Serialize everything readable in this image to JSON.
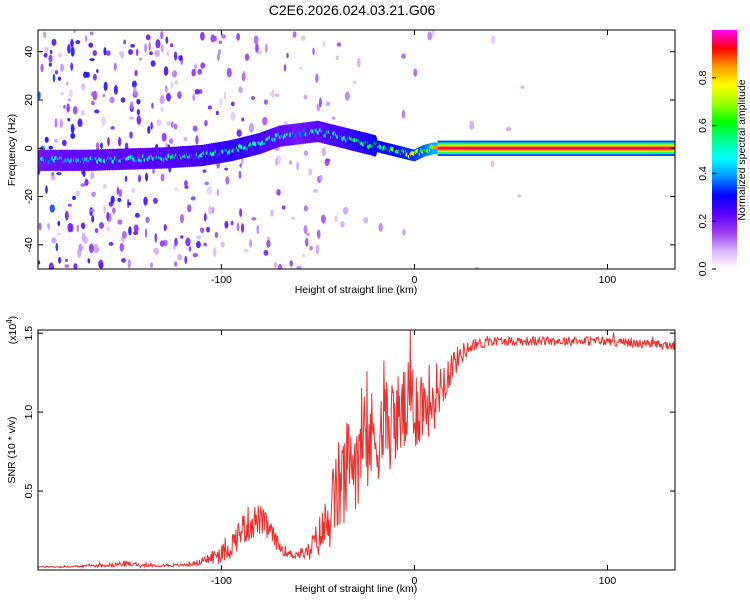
{
  "title": "C2E6.2026.024.03.21.G06",
  "colors": {
    "snr_line": "#e8312f",
    "axis": "#000000",
    "background": "#ffffff"
  },
  "chart_data": [
    {
      "type": "heatmap",
      "name": "spectrogram",
      "xlabel": "Height of straight line (km)",
      "ylabel": "Frequency (Hz)",
      "xlim": [
        -195,
        135
      ],
      "ylim": [
        -50,
        49
      ],
      "xticks": [
        -100,
        0,
        100
      ],
      "xtick_labels": [
        "-100",
        "0",
        "100"
      ],
      "yticks": [
        -40,
        -20,
        0,
        20,
        40
      ],
      "ytick_labels": [
        "-40",
        "-20",
        "0",
        "20",
        "40"
      ],
      "colorbar": {
        "label": "Normalized spectral amplitude",
        "range": [
          0,
          1
        ],
        "ticks": [
          0.0,
          0.2,
          0.4,
          0.6,
          0.8
        ],
        "tick_labels": [
          "0.0",
          "0.2",
          "0.4",
          "0.6",
          "0.8"
        ],
        "colormap": [
          "#ffffff",
          "#d8b4f8",
          "#9a3cf0",
          "#5a00ff",
          "#0000ff",
          "#0090ff",
          "#00ffff",
          "#00ff90",
          "#00ff00",
          "#9aff00",
          "#ffff00",
          "#ff9a00",
          "#ff0000",
          "#ff00ff"
        ]
      },
      "ridge": {
        "x": [
          -195,
          -170,
          -150,
          -130,
          -110,
          -95,
          -80,
          -70,
          -60,
          -50,
          -40,
          -30,
          -20,
          -10,
          0,
          5,
          10,
          135
        ],
        "y": [
          -5,
          -5,
          -4.5,
          -4,
          -3,
          -1,
          2,
          5,
          6,
          7,
          5,
          3,
          1,
          -1,
          -3,
          -1,
          0,
          0
        ],
        "amplitude": [
          0.45,
          0.5,
          0.5,
          0.52,
          0.55,
          0.6,
          0.55,
          0.5,
          0.45,
          0.5,
          0.55,
          0.6,
          0.65,
          0.7,
          0.75,
          0.8,
          0.9,
          0.95
        ]
      },
      "stable_band": {
        "x_start": 12,
        "x_end": 135,
        "y_center": 0,
        "amplitude": 0.95
      }
    },
    {
      "type": "line",
      "name": "snr",
      "xlabel": "Height of straight line (km)",
      "ylabel": "SNR (10 * v/v)",
      "y_multiplier_label": "(x10",
      "y_multiplier_exp": "4",
      "xlim": [
        -195,
        135
      ],
      "ylim": [
        0,
        1.52
      ],
      "xticks": [
        -100,
        0,
        100
      ],
      "xtick_labels": [
        "-100",
        "0",
        "100"
      ],
      "yticks": [
        0.5,
        1.0,
        1.5
      ],
      "ytick_labels": [
        "0.5",
        "1.0",
        "1.5"
      ],
      "series": [
        {
          "name": "SNR",
          "color": "#e8312f",
          "x": [
            -195,
            -180,
            -160,
            -150,
            -140,
            -120,
            -110,
            -105,
            -100,
            -95,
            -90,
            -85,
            -80,
            -75,
            -70,
            -65,
            -60,
            -55,
            -50,
            -45,
            -40,
            -35,
            -30,
            -25,
            -20,
            -15,
            -10,
            -5,
            0,
            5,
            10,
            15,
            20,
            25,
            30,
            40,
            60,
            80,
            100,
            120,
            135
          ],
          "y": [
            0.02,
            0.02,
            0.03,
            0.04,
            0.03,
            0.03,
            0.05,
            0.08,
            0.1,
            0.15,
            0.25,
            0.3,
            0.32,
            0.25,
            0.15,
            0.1,
            0.1,
            0.12,
            0.2,
            0.3,
            0.5,
            0.6,
            0.75,
            0.8,
            0.85,
            0.9,
            0.95,
            1.0,
            1.05,
            1.05,
            1.1,
            1.2,
            1.3,
            1.38,
            1.42,
            1.45,
            1.45,
            1.45,
            1.45,
            1.43,
            1.42
          ],
          "noise": [
            0.005,
            0.005,
            0.01,
            0.02,
            0.01,
            0.01,
            0.02,
            0.05,
            0.06,
            0.08,
            0.1,
            0.12,
            0.1,
            0.08,
            0.04,
            0.03,
            0.03,
            0.05,
            0.12,
            0.2,
            0.3,
            0.35,
            0.35,
            0.35,
            0.3,
            0.3,
            0.28,
            0.3,
            0.3,
            0.25,
            0.22,
            0.15,
            0.1,
            0.06,
            0.04,
            0.03,
            0.03,
            0.03,
            0.03,
            0.03,
            0.03
          ]
        }
      ]
    }
  ]
}
